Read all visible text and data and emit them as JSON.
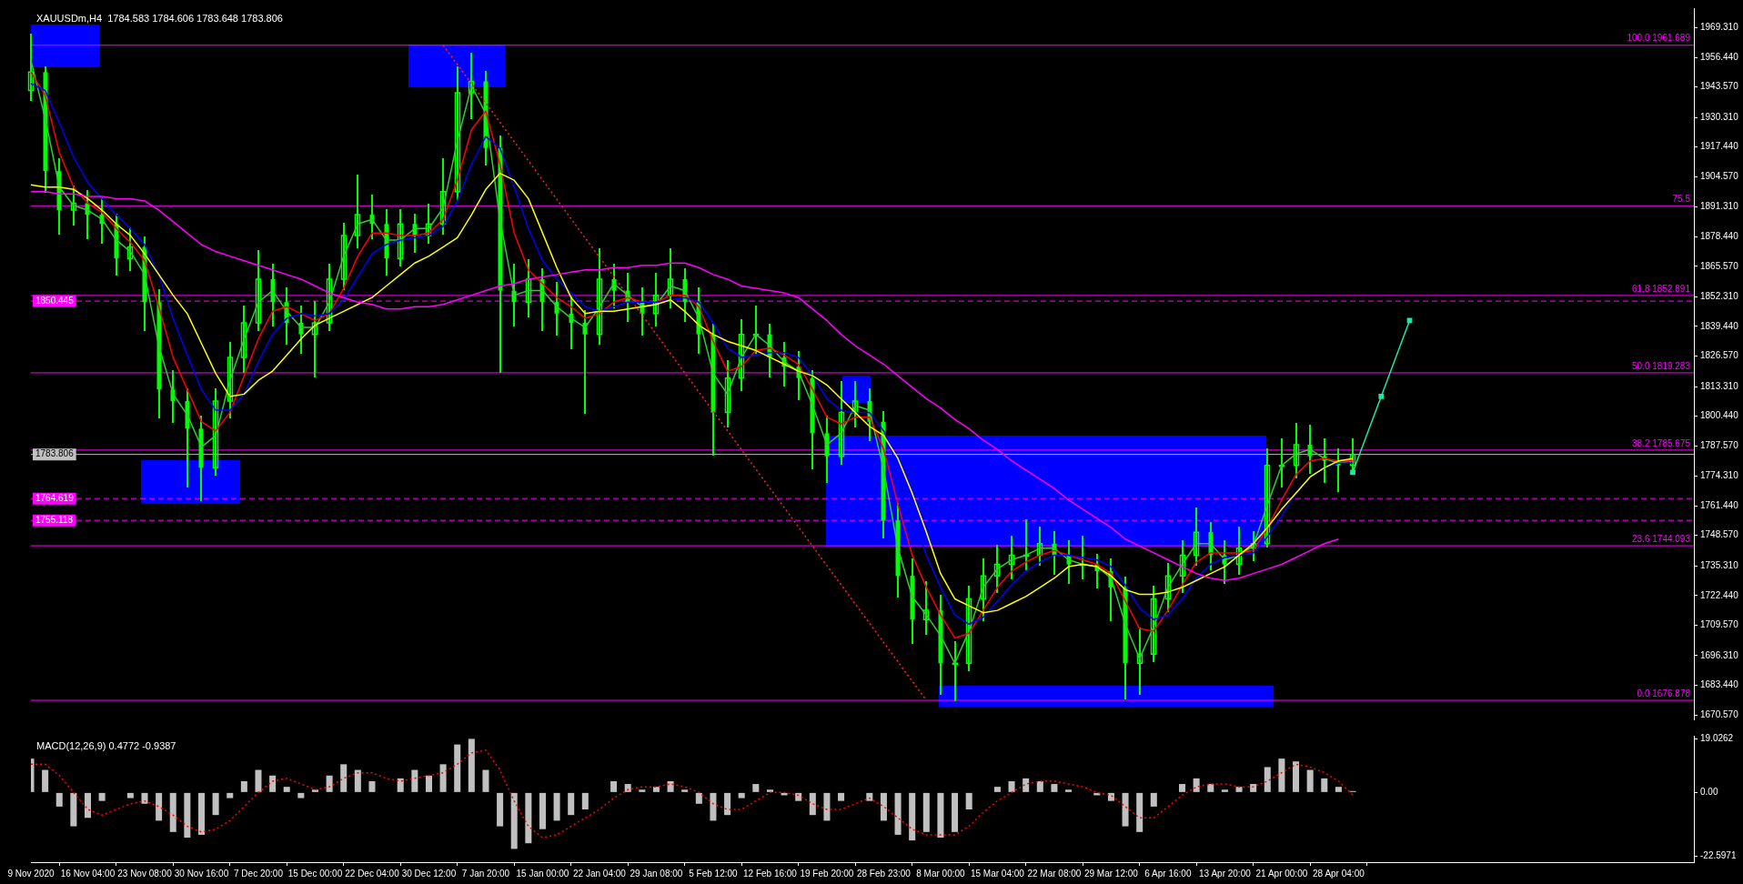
{
  "chart_data": [
    {
      "type": "candlestick",
      "title": "XAUUSDm,H4  1784.583 1784.606 1783.648 1783.806",
      "color": "#00ff00",
      "categories": [
        null,
        null,
        null,
        null,
        null,
        null,
        null,
        null,
        null,
        null,
        null,
        null,
        null,
        null,
        null,
        null,
        null,
        null,
        null,
        null,
        null,
        null,
        null,
        null,
        null,
        null,
        null,
        null,
        null,
        null,
        null,
        null,
        null,
        null,
        null,
        null,
        null,
        null,
        null,
        null,
        null,
        null,
        null,
        null,
        null,
        null,
        null,
        null,
        null,
        null,
        null,
        null,
        null,
        null,
        null,
        null,
        null,
        null,
        null,
        null,
        null,
        null,
        null,
        null,
        null,
        null,
        null,
        null,
        null,
        null,
        null,
        null,
        null,
        null,
        null,
        null,
        null,
        null,
        null,
        null,
        null,
        null,
        null,
        null,
        null,
        null,
        null,
        null,
        null,
        null,
        null,
        null,
        null,
        null,
        null,
        null,
        null,
        null,
        null,
        null,
        null,
        null,
        null,
        null,
        null,
        null,
        null,
        null,
        null,
        null,
        null,
        null,
        null,
        null,
        null,
        null,
        null,
        null
      ],
      "ohlc": [
        [
          1942,
          1966,
          1938,
          1950
        ],
        [
          1950,
          1952,
          1898,
          1907
        ],
        [
          1907,
          1912,
          1880,
          1890
        ],
        [
          1890,
          1900,
          1884,
          1893
        ],
        [
          1893,
          1898,
          1878,
          1888
        ],
        [
          1888,
          1895,
          1876,
          1884
        ],
        [
          1884,
          1888,
          1862,
          1869
        ],
        [
          1869,
          1882,
          1864,
          1874
        ],
        [
          1874,
          1878,
          1838,
          1850
        ],
        [
          1850,
          1855,
          1800,
          1812
        ],
        [
          1812,
          1820,
          1798,
          1807
        ],
        [
          1807,
          1812,
          1770,
          1795
        ],
        [
          1795,
          1800,
          1764,
          1778
        ],
        [
          1778,
          1812,
          1775,
          1807
        ],
        [
          1807,
          1832,
          1800,
          1826
        ],
        [
          1826,
          1848,
          1820,
          1841
        ],
        [
          1841,
          1872,
          1838,
          1860
        ],
        [
          1860,
          1866,
          1840,
          1850
        ],
        [
          1850,
          1856,
          1832,
          1841
        ],
        [
          1841,
          1848,
          1828,
          1836
        ],
        [
          1836,
          1850,
          1818,
          1841
        ],
        [
          1841,
          1866,
          1838,
          1860
        ],
        [
          1860,
          1884,
          1856,
          1879
        ],
        [
          1879,
          1905,
          1874,
          1888
        ],
        [
          1888,
          1896,
          1878,
          1884
        ],
        [
          1884,
          1890,
          1862,
          1869
        ],
        [
          1869,
          1890,
          1866,
          1884
        ],
        [
          1884,
          1888,
          1872,
          1879
        ],
        [
          1879,
          1892,
          1876,
          1884
        ],
        [
          1884,
          1912,
          1880,
          1898
        ],
        [
          1898,
          1952,
          1895,
          1941
        ],
        [
          1941,
          1958,
          1930,
          1946
        ],
        [
          1946,
          1950,
          1910,
          1917
        ],
        [
          1917,
          1922,
          1820,
          1855
        ],
        [
          1855,
          1866,
          1840,
          1850
        ],
        [
          1850,
          1868,
          1844,
          1860
        ],
        [
          1860,
          1864,
          1838,
          1850
        ],
        [
          1850,
          1858,
          1836,
          1845
        ],
        [
          1845,
          1852,
          1830,
          1841
        ],
        [
          1841,
          1846,
          1802,
          1836
        ],
        [
          1836,
          1873,
          1832,
          1860
        ],
        [
          1860,
          1866,
          1848,
          1855
        ],
        [
          1855,
          1862,
          1842,
          1850
        ],
        [
          1850,
          1856,
          1836,
          1845
        ],
        [
          1845,
          1862,
          1840,
          1853
        ],
        [
          1853,
          1873,
          1848,
          1860
        ],
        [
          1860,
          1864,
          1842,
          1850
        ],
        [
          1850,
          1856,
          1828,
          1836
        ],
        [
          1836,
          1840,
          1784,
          1802
        ],
        [
          1802,
          1824,
          1796,
          1817
        ],
        [
          1817,
          1842,
          1812,
          1836
        ],
        [
          1836,
          1848,
          1828,
          1836
        ],
        [
          1836,
          1840,
          1818,
          1826
        ],
        [
          1826,
          1832,
          1814,
          1822
        ],
        [
          1822,
          1828,
          1808,
          1817
        ],
        [
          1817,
          1820,
          1778,
          1793
        ],
        [
          1793,
          1800,
          1772,
          1783
        ],
        [
          1783,
          1815,
          1780,
          1802
        ],
        [
          1802,
          1815,
          1796,
          1807
        ],
        [
          1807,
          1812,
          1790,
          1798
        ],
        [
          1798,
          1802,
          1748,
          1755
        ],
        [
          1755,
          1762,
          1722,
          1731
        ],
        [
          1731,
          1738,
          1702,
          1712
        ],
        [
          1712,
          1728,
          1706,
          1716
        ],
        [
          1716,
          1722,
          1680,
          1693
        ],
        [
          1693,
          1702,
          1677,
          1693
        ],
        [
          1693,
          1726,
          1690,
          1721
        ],
        [
          1721,
          1738,
          1712,
          1731
        ],
        [
          1731,
          1744,
          1724,
          1736
        ],
        [
          1736,
          1748,
          1730,
          1740
        ],
        [
          1740,
          1755,
          1734,
          1740
        ],
        [
          1740,
          1752,
          1736,
          1745
        ],
        [
          1745,
          1750,
          1732,
          1740
        ],
        [
          1740,
          1746,
          1728,
          1736
        ],
        [
          1736,
          1748,
          1730,
          1736
        ],
        [
          1736,
          1740,
          1726,
          1733
        ],
        [
          1733,
          1738,
          1712,
          1726
        ],
        [
          1726,
          1730,
          1678,
          1693
        ],
        [
          1693,
          1708,
          1680,
          1697
        ],
        [
          1697,
          1726,
          1694,
          1721
        ],
        [
          1721,
          1736,
          1716,
          1731
        ],
        [
          1731,
          1746,
          1724,
          1740
        ],
        [
          1740,
          1760,
          1736,
          1750
        ],
        [
          1750,
          1754,
          1734,
          1740
        ],
        [
          1740,
          1746,
          1728,
          1736
        ],
        [
          1736,
          1752,
          1732,
          1743
        ],
        [
          1743,
          1750,
          1738,
          1745
        ],
        [
          1745,
          1786,
          1744,
          1779
        ],
        [
          1779,
          1790,
          1770,
          1779
        ],
        [
          1779,
          1797,
          1774,
          1788
        ],
        [
          1788,
          1796,
          1776,
          1783
        ],
        [
          1783,
          1790,
          1772,
          1781
        ],
        [
          1781,
          1786,
          1768,
          1779
        ],
        [
          1779,
          1790,
          1776,
          1783.806
        ],
        null,
        null,
        null,
        null,
        null,
        null,
        null,
        null,
        null,
        null,
        null,
        null,
        null,
        null,
        null,
        null,
        null,
        null,
        null,
        null,
        null,
        null,
        null,
        null
      ],
      "series": [
        {
          "type": "line",
          "color": "#ff00ff",
          "values": [
            1898,
            1898,
            1897,
            1897,
            1896,
            1896,
            1895,
            1895,
            1894,
            1890,
            1885,
            1880,
            1875,
            1872,
            1870,
            1868,
            1866,
            1864,
            1862,
            1860,
            1857,
            1854,
            1852,
            1850,
            1849,
            1847,
            1847,
            1848,
            1848,
            1849,
            1851,
            1853,
            1855,
            1857,
            1858,
            1860,
            1861,
            1862,
            1863,
            1864,
            1864,
            1865,
            1865,
            1866,
            1866,
            1867,
            1867,
            1865,
            1862,
            1860,
            1857,
            1856,
            1855,
            1854,
            1852,
            1847,
            1842,
            1836,
            1831,
            1827,
            1823,
            1818,
            1813,
            1808,
            1804,
            1799,
            1795,
            1790,
            1786,
            1781,
            1777,
            1773,
            1769,
            1764,
            1760,
            1756,
            1752,
            1747,
            1744,
            1741,
            1738,
            1735,
            1732,
            1730,
            1729,
            1730,
            1732,
            1734,
            1736,
            1739,
            1742,
            1745,
            1747,
            null,
            null,
            null,
            null,
            null,
            null,
            null,
            null,
            null,
            null,
            null,
            null,
            null,
            null,
            null,
            null,
            null,
            null,
            null,
            null,
            null,
            null,
            null,
            null,
            null
          ]
        },
        {
          "type": "line",
          "color": "#ffff00",
          "values": [
            1901,
            1900,
            1900,
            1899,
            1895,
            1890,
            1884,
            1879,
            1871,
            1862,
            1853,
            1845,
            1832,
            1819,
            1809,
            1810,
            1816,
            1820,
            1827,
            1834,
            1840,
            1843,
            1846,
            1849,
            1852,
            1857,
            1862,
            1867,
            1870,
            1874,
            1878,
            1888,
            1899,
            1906,
            1903,
            1895,
            1880,
            1865,
            1852,
            1845,
            1846,
            1846,
            1847,
            1848,
            1849,
            1851,
            1846,
            1840,
            1836,
            1833,
            1831,
            1829,
            1826,
            1823,
            1820,
            1818,
            1814,
            1808,
            1802,
            1796,
            1792,
            1782,
            1767,
            1750,
            1732,
            1721,
            1718,
            1715,
            1716,
            1719,
            1722,
            1726,
            1730,
            1735,
            1736,
            1735,
            1731,
            1725,
            1723,
            1723,
            1724,
            1726,
            1729,
            1732,
            1735,
            1740,
            1745,
            1752,
            1760,
            1767,
            1774,
            1778,
            1781,
            1782,
            null,
            null,
            null,
            null,
            null,
            null,
            null,
            null,
            null,
            null,
            null,
            null,
            null,
            null,
            null,
            null,
            null,
            null,
            null,
            null,
            null,
            null,
            null,
            null
          ]
        },
        {
          "type": "line",
          "color": "#0000ff",
          "values": [
            1945,
            1942,
            1928,
            1913,
            1902,
            1895,
            1888,
            1882,
            1875,
            1862,
            1843,
            1827,
            1812,
            1803,
            1803,
            1810,
            1824,
            1836,
            1843,
            1845,
            1844,
            1845,
            1851,
            1861,
            1871,
            1875,
            1877,
            1878,
            1879,
            1883,
            1894,
            1910,
            1922,
            1917,
            1900,
            1882,
            1868,
            1860,
            1854,
            1848,
            1846,
            1848,
            1850,
            1850,
            1850,
            1851,
            1852,
            1850,
            1841,
            1830,
            1826,
            1827,
            1828,
            1828,
            1826,
            1818,
            1808,
            1803,
            1802,
            1802,
            1794,
            1778,
            1758,
            1740,
            1726,
            1714,
            1710,
            1713,
            1720,
            1727,
            1733,
            1737,
            1740,
            1740,
            1739,
            1738,
            1735,
            1727,
            1717,
            1712,
            1714,
            1721,
            1730,
            1736,
            1739,
            1740,
            1741,
            1748,
            1757,
            1767,
            1774,
            1778,
            1780,
            1780,
            null,
            null,
            null,
            null,
            null,
            null,
            null,
            null,
            null,
            null,
            null,
            null,
            null,
            null,
            null,
            null,
            null,
            null,
            null,
            null,
            null,
            null,
            null,
            null
          ]
        },
        {
          "type": "line",
          "color": "#ff0000",
          "values": [
            1950,
            1940,
            1915,
            1900,
            1893,
            1889,
            1882,
            1876,
            1868,
            1848,
            1826,
            1812,
            1798,
            1794,
            1802,
            1818,
            1834,
            1846,
            1848,
            1845,
            1842,
            1845,
            1856,
            1870,
            1880,
            1880,
            1879,
            1879,
            1880,
            1886,
            1903,
            1925,
            1933,
            1910,
            1880,
            1864,
            1858,
            1852,
            1848,
            1843,
            1845,
            1850,
            1852,
            1850,
            1850,
            1853,
            1853,
            1848,
            1833,
            1820,
            1822,
            1829,
            1830,
            1827,
            1823,
            1812,
            1800,
            1797,
            1800,
            1800,
            1786,
            1762,
            1740,
            1726,
            1714,
            1704,
            1706,
            1716,
            1726,
            1733,
            1737,
            1740,
            1742,
            1740,
            1738,
            1736,
            1732,
            1720,
            1708,
            1707,
            1716,
            1727,
            1737,
            1741,
            1741,
            1741,
            1742,
            1752,
            1764,
            1775,
            1781,
            1782,
            1781,
            1781,
            null,
            null,
            null,
            null,
            null,
            null,
            null,
            null,
            null,
            null,
            null,
            null,
            null,
            null,
            null,
            null,
            null,
            null,
            null,
            null,
            null,
            null,
            null,
            null
          ]
        },
        {
          "type": "line",
          "color": "#32cd32",
          "values": [
            1955,
            1930,
            1900,
            1892,
            1890,
            1886,
            1877,
            1872,
            1862,
            1831,
            1810,
            1801,
            1787,
            1792,
            1816,
            1834,
            1850,
            1855,
            1846,
            1839,
            1839,
            1850,
            1870,
            1884,
            1886,
            1877,
            1877,
            1882,
            1882,
            1891,
            1920,
            1944,
            1932,
            1886,
            1853,
            1855,
            1855,
            1848,
            1843,
            1839,
            1848,
            1858,
            1853,
            1848,
            1849,
            1857,
            1855,
            1843,
            1819,
            1810,
            1826,
            1836,
            1831,
            1824,
            1820,
            1805,
            1788,
            1793,
            1805,
            1803,
            1777,
            1743,
            1722,
            1714,
            1705,
            1693,
            1707,
            1726,
            1734,
            1738,
            1740,
            1743,
            1743,
            1738,
            1736,
            1735,
            1730,
            1710,
            1695,
            1709,
            1726,
            1736,
            1745,
            1745,
            1738,
            1740,
            1744,
            1762,
            1779,
            1784,
            1786,
            1782,
            1780,
            1781,
            null,
            null,
            null,
            null,
            null,
            null,
            null,
            null,
            null,
            null,
            null,
            null,
            null,
            null,
            null,
            null,
            null,
            null,
            null,
            null,
            null,
            null,
            null,
            null
          ]
        },
        {
          "type": "line",
          "color": "#ff2020",
          "line_style": "dotted",
          "values": [
            null,
            null,
            null,
            null,
            null,
            null,
            null,
            null,
            null,
            null,
            null,
            null,
            null,
            null,
            null,
            null,
            null,
            null,
            null,
            null,
            null,
            null,
            null,
            null,
            null,
            null,
            null,
            null,
            null,
            1961.689,
            null,
            null,
            null,
            null,
            null,
            null,
            null,
            null,
            null,
            null,
            null,
            null,
            null,
            null,
            null,
            null,
            null,
            null,
            null,
            null,
            null,
            null,
            null,
            null,
            null,
            null,
            null,
            null,
            null,
            null,
            null,
            null,
            null,
            1676.878,
            null,
            null,
            null,
            null,
            null,
            null,
            null,
            null,
            null,
            null,
            null,
            null,
            null,
            null,
            null,
            null,
            null,
            null,
            null,
            null,
            null,
            null,
            null,
            null,
            null,
            null,
            null,
            null,
            null,
            null,
            null,
            null,
            null,
            null,
            null,
            null,
            null,
            null,
            null,
            null,
            null,
            null,
            null,
            null,
            null,
            null,
            null,
            null,
            null,
            null,
            null,
            null,
            null,
            null
          ]
        },
        {
          "type": "line",
          "color": "#1de9a0",
          "marker": "square",
          "values": [
            null,
            null,
            null,
            null,
            null,
            null,
            null,
            null,
            null,
            null,
            null,
            null,
            null,
            null,
            null,
            null,
            null,
            null,
            null,
            null,
            null,
            null,
            null,
            null,
            null,
            null,
            null,
            null,
            null,
            null,
            null,
            null,
            null,
            null,
            null,
            null,
            null,
            null,
            null,
            null,
            null,
            null,
            null,
            null,
            null,
            null,
            null,
            null,
            null,
            null,
            null,
            null,
            null,
            null,
            null,
            null,
            null,
            null,
            null,
            null,
            null,
            null,
            null,
            null,
            null,
            null,
            null,
            null,
            null,
            null,
            null,
            null,
            null,
            null,
            null,
            null,
            null,
            null,
            null,
            null,
            null,
            null,
            null,
            null,
            null,
            null,
            null,
            null,
            null,
            null,
            null,
            null,
            null,
            1776,
            null,
            1809,
            null,
            1842,
            null,
            null,
            null,
            null,
            null,
            null,
            null,
            null,
            null,
            null,
            null,
            null,
            null,
            null,
            null,
            null,
            null,
            null,
            null,
            null
          ]
        }
      ],
      "ref_lines": [
        {
          "axis": "y",
          "value": 1961.689,
          "label": "100.0 1961.689",
          "color": "#ff00ff"
        },
        {
          "axis": "y",
          "value": 1891.9,
          "color": "#ff00ff"
        },
        {
          "axis": "y",
          "value": 1852.891,
          "label": "61.8 1852.891",
          "color": "#ff00ff"
        },
        {
          "axis": "y",
          "value": 1819.283,
          "label": "50.0 1819.283",
          "color": "#ff00ff"
        },
        {
          "axis": "y",
          "value": 1785.675,
          "label": "38.2 1785.675",
          "color": "#ff00ff"
        },
        {
          "axis": "y",
          "value": 1744.093,
          "label": "23.6 1744.093",
          "color": "#ff00ff"
        },
        {
          "axis": "y",
          "value": 1676.878,
          "label": "0.0 1676.878",
          "color": "#ff00ff"
        },
        {
          "axis": "y",
          "value": 1850.445,
          "label": "1850.445",
          "color": "#ff00ff",
          "line_style": "dashed"
        },
        {
          "axis": "y",
          "value": 1764.619,
          "label": "1764.619",
          "color": "#ff00ff",
          "line_style": "dashed"
        },
        {
          "axis": "y",
          "value": 1755.118,
          "label": "1755.118",
          "color": "#ff00ff",
          "line_style": "dashed"
        },
        {
          "axis": "y",
          "value": 1783.806,
          "label": "1783.806",
          "color": "#c0c0c0"
        }
      ],
      "ylim": [
        1668.6,
        1977.8
      ],
      "yticks": [
        {
          "value": 1670.57,
          "label": "1670.570"
        },
        {
          "value": 1683.44,
          "label": "1683.440"
        },
        {
          "value": 1696.31,
          "label": "1696.310"
        },
        {
          "value": 1709.57,
          "label": "1709.570"
        },
        {
          "value": 1722.44,
          "label": "1722.440"
        },
        {
          "value": 1735.31,
          "label": "1735.310"
        },
        {
          "value": 1748.57,
          "label": "1748.570"
        },
        {
          "value": 1761.44,
          "label": "1761.440"
        },
        {
          "value": 1774.31,
          "label": "1774.310"
        },
        {
          "value": 1787.57,
          "label": "1787.570"
        },
        {
          "value": 1800.44,
          "label": "1800.440"
        },
        {
          "value": 1813.31,
          "label": "1813.310"
        },
        {
          "value": 1826.57,
          "label": "1826.570"
        },
        {
          "value": 1839.44,
          "label": "1839.440"
        },
        {
          "value": 1852.31,
          "label": "1852.310"
        },
        {
          "value": 1865.57,
          "label": "1865.570"
        },
        {
          "value": 1878.44,
          "label": "1878.440"
        },
        {
          "value": 1891.31,
          "label": "1891.310"
        },
        {
          "value": 1904.57,
          "label": "1904.570"
        },
        {
          "value": 1917.44,
          "label": "1917.440"
        },
        {
          "value": 1930.31,
          "label": "1930.310"
        },
        {
          "value": 1943.57,
          "label": "1943.570"
        },
        {
          "value": 1956.44,
          "label": "1956.440"
        },
        {
          "value": 1969.31,
          "label": "1969.310"
        }
      ],
      "annotations": [
        {
          "text": "75.5",
          "y": 1891.9
        }
      ],
      "tick_labels": "y"
    },
    {
      "type": "bar",
      "title": "MACD(12,26,9) 0.4772 -0.9387",
      "categories": [
        "9 Nov 2020",
        null,
        null,
        null,
        "16 Nov 04:00",
        null,
        null,
        null,
        "23 Nov 08:00",
        null,
        null,
        null,
        "30 Nov 16:00",
        null,
        null,
        null,
        "7 Dec 20:00",
        null,
        null,
        null,
        "15 Dec 00:00",
        null,
        null,
        null,
        "22 Dec 04:00",
        null,
        null,
        null,
        "30 Dec 12:00",
        null,
        null,
        null,
        "7 Jan 20:00",
        null,
        null,
        null,
        "15 Jan 00:00",
        null,
        null,
        null,
        "22 Jan 04:00",
        null,
        null,
        null,
        "29 Jan 08:00",
        null,
        null,
        null,
        "5 Feb 12:00",
        null,
        null,
        null,
        "12 Feb 16:00",
        null,
        null,
        null,
        "19 Feb 20:00",
        null,
        null,
        null,
        "28 Feb 23:00",
        null,
        null,
        null,
        "8 Mar 00:00",
        null,
        null,
        null,
        "15 Mar 04:00",
        null,
        null,
        null,
        "22 Mar 08:00",
        null,
        null,
        null,
        "29 Mar 12:00",
        null,
        null,
        null,
        "6 Apr 16:00",
        null,
        null,
        null,
        "13 Apr 20:00",
        null,
        null,
        null,
        "21 Apr 00:00",
        null,
        null,
        null,
        "28 Apr 04:00",
        null,
        null,
        null,
        null,
        null,
        null,
        null,
        null,
        null,
        null,
        null,
        null,
        null,
        null,
        null,
        null,
        null,
        null,
        null,
        null,
        null,
        null,
        null,
        null,
        null
      ],
      "series": [
        {
          "color": "#c0c0c0",
          "values": [
            12,
            8,
            -5,
            -12,
            -9,
            -3,
            0,
            -2,
            -4,
            -10,
            -14,
            -16,
            -15,
            -8,
            -2,
            4,
            8,
            6,
            2,
            -2,
            1,
            6,
            10,
            8,
            4,
            0,
            5,
            8,
            6,
            10,
            17,
            19,
            8,
            -12,
            -20,
            -18,
            -13,
            -10,
            -8,
            -6,
            0,
            4,
            3,
            1,
            2,
            4,
            1,
            -4,
            -10,
            -8,
            -2,
            3,
            1,
            -1,
            -3,
            -8,
            -10,
            -3,
            0,
            -3,
            -10,
            -15,
            -17,
            -14,
            -16,
            -14,
            -6,
            0,
            2,
            4,
            5,
            4,
            3,
            1,
            0,
            -1,
            -3,
            -12,
            -14,
            -5,
            0,
            3,
            5,
            3,
            1,
            2,
            3,
            9,
            12,
            11,
            8,
            5,
            2,
            0.5,
            null,
            null,
            null,
            null,
            null,
            null,
            null,
            null,
            null,
            null,
            null,
            null,
            null,
            null,
            null,
            null,
            null,
            null,
            null,
            null,
            null,
            null,
            null,
            null
          ]
        },
        {
          "type": "line",
          "color": "#ff0000",
          "line_style": "dotted",
          "values": [
            10,
            10,
            6,
            0,
            -6,
            -8,
            -6,
            -4,
            -3,
            -5,
            -8,
            -12,
            -14,
            -13,
            -10,
            -5,
            0,
            4,
            5,
            3,
            1,
            2,
            5,
            7,
            7,
            5,
            4,
            5,
            6,
            7,
            10,
            14,
            15,
            8,
            -3,
            -12,
            -16,
            -15,
            -12,
            -9,
            -6,
            -2,
            1,
            2,
            2,
            3,
            2,
            0,
            -4,
            -6,
            -6,
            -3,
            0,
            0,
            -1,
            -4,
            -6,
            -6,
            -4,
            -2,
            -5,
            -9,
            -13,
            -15,
            -15,
            -15,
            -12,
            -7,
            -3,
            0,
            3,
            4,
            4,
            3,
            2,
            0,
            -1,
            -5,
            -9,
            -9,
            -5,
            -1,
            2,
            3,
            3,
            2,
            2,
            4,
            7,
            10,
            9,
            7,
            4,
            -0.9,
            null,
            null,
            null,
            null,
            null,
            null,
            null,
            null,
            null,
            null,
            null,
            null,
            null,
            null,
            null,
            null,
            null,
            null,
            null,
            null,
            null,
            null,
            null,
            null
          ]
        }
      ],
      "ylim": [
        -24.7,
        20.1
      ],
      "yticks": [
        -22.5971,
        {
          "value": 0,
          "label": "0.00"
        },
        19.0262
      ]
    }
  ]
}
